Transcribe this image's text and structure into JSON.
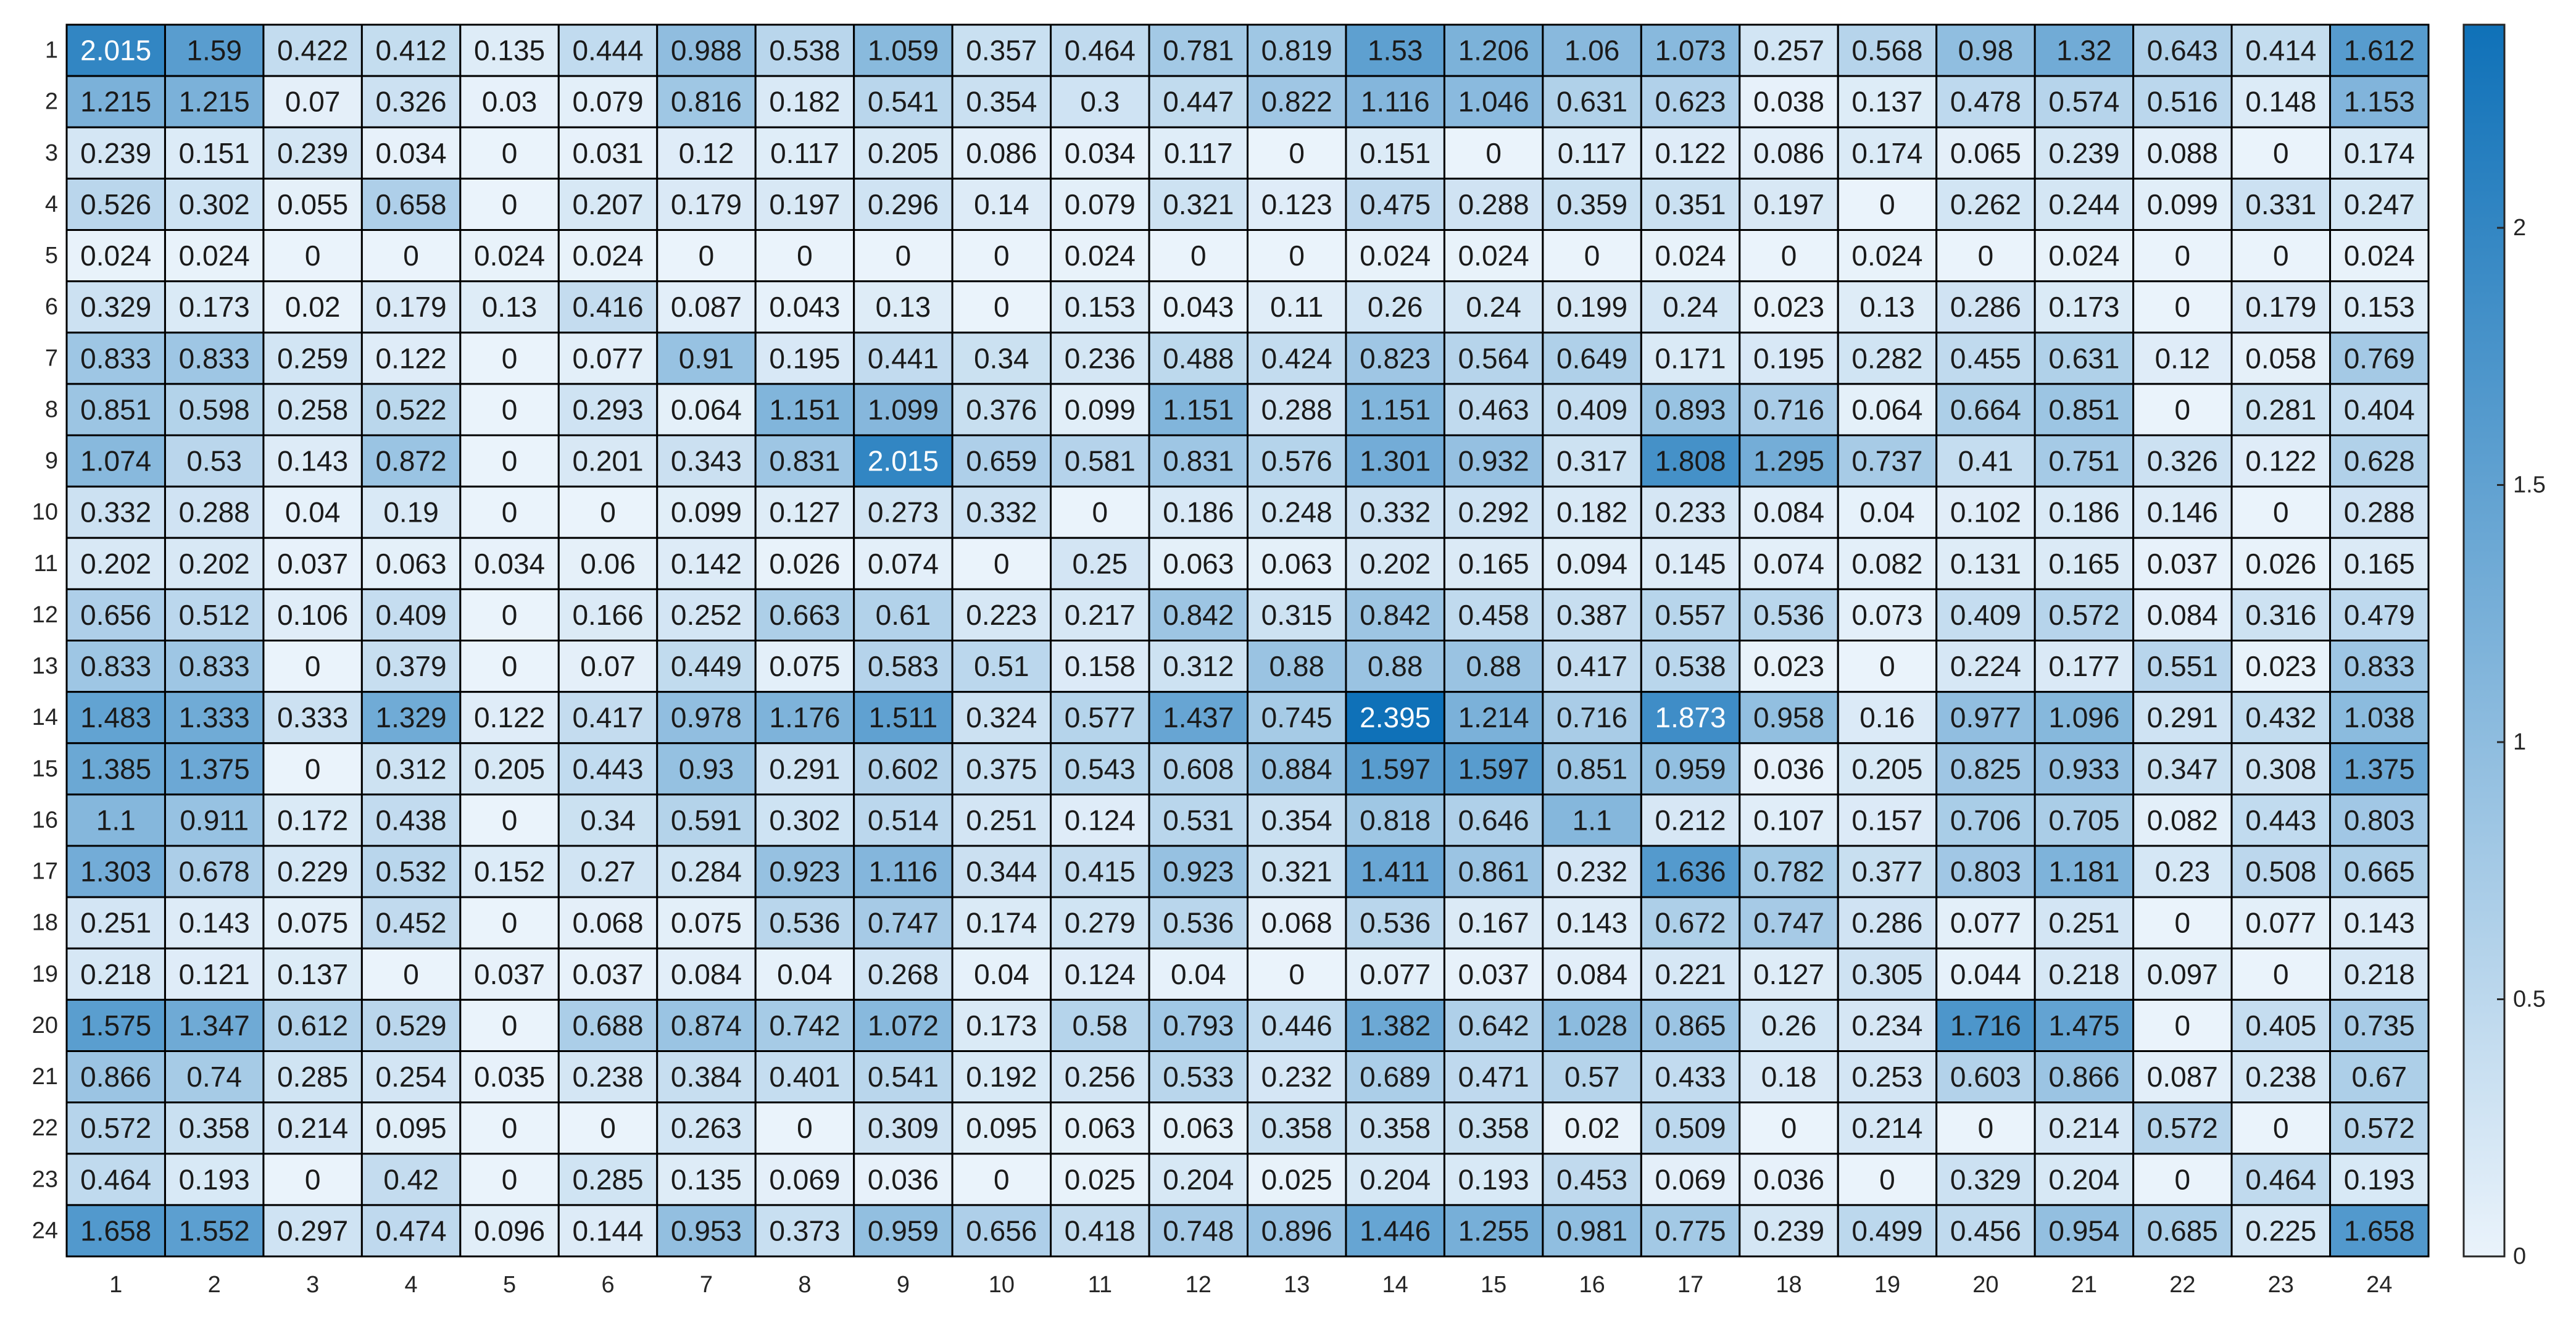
{
  "chart_data": {
    "type": "heatmap",
    "title": "",
    "xlabel": "",
    "ylabel": "",
    "x_categories": [
      "1",
      "2",
      "3",
      "4",
      "5",
      "6",
      "7",
      "8",
      "9",
      "10",
      "11",
      "12",
      "13",
      "14",
      "15",
      "16",
      "17",
      "18",
      "19",
      "20",
      "21",
      "22",
      "23",
      "24"
    ],
    "y_categories": [
      "1",
      "2",
      "3",
      "4",
      "5",
      "6",
      "7",
      "8",
      "9",
      "10",
      "11",
      "12",
      "13",
      "14",
      "15",
      "16",
      "17",
      "18",
      "19",
      "20",
      "21",
      "22",
      "23",
      "24"
    ],
    "values": [
      [
        2.015,
        1.59,
        0.422,
        0.412,
        0.135,
        0.444,
        0.988,
        0.538,
        1.059,
        0.357,
        0.464,
        0.781,
        0.819,
        1.53,
        1.206,
        1.06,
        1.073,
        0.257,
        0.568,
        0.98,
        1.32,
        0.643,
        0.414,
        1.612
      ],
      [
        1.215,
        1.215,
        0.07,
        0.326,
        0.03,
        0.079,
        0.816,
        0.182,
        0.541,
        0.354,
        0.3,
        0.447,
        0.822,
        1.116,
        1.046,
        0.631,
        0.623,
        0.038,
        0.137,
        0.478,
        0.574,
        0.516,
        0.148,
        1.153
      ],
      [
        0.239,
        0.151,
        0.239,
        0.034,
        0,
        0.031,
        0.12,
        0.117,
        0.205,
        0.086,
        0.034,
        0.117,
        0,
        0.151,
        0,
        0.117,
        0.122,
        0.086,
        0.174,
        0.065,
        0.239,
        0.088,
        0,
        0.174
      ],
      [
        0.526,
        0.302,
        0.055,
        0.658,
        0,
        0.207,
        0.179,
        0.197,
        0.296,
        0.14,
        0.079,
        0.321,
        0.123,
        0.475,
        0.288,
        0.359,
        0.351,
        0.197,
        0,
        0.262,
        0.244,
        0.099,
        0.331,
        0.247
      ],
      [
        0.024,
        0.024,
        0,
        0,
        0.024,
        0.024,
        0,
        0,
        0,
        0,
        0.024,
        0,
        0,
        0.024,
        0.024,
        0,
        0.024,
        0,
        0.024,
        0,
        0.024,
        0,
        0,
        0.024
      ],
      [
        0.329,
        0.173,
        0.02,
        0.179,
        0.13,
        0.416,
        0.087,
        0.043,
        0.13,
        0,
        0.153,
        0.043,
        0.11,
        0.26,
        0.24,
        0.199,
        0.24,
        0.023,
        0.13,
        0.286,
        0.173,
        0,
        0.179,
        0.153
      ],
      [
        0.833,
        0.833,
        0.259,
        0.122,
        0,
        0.077,
        0.91,
        0.195,
        0.441,
        0.34,
        0.236,
        0.488,
        0.424,
        0.823,
        0.564,
        0.649,
        0.171,
        0.195,
        0.282,
        0.455,
        0.631,
        0.12,
        0.058,
        0.769
      ],
      [
        0.851,
        0.598,
        0.258,
        0.522,
        0,
        0.293,
        0.064,
        1.151,
        1.099,
        0.376,
        0.099,
        1.151,
        0.288,
        1.151,
        0.463,
        0.409,
        0.893,
        0.716,
        0.064,
        0.664,
        0.851,
        0,
        0.281,
        0.404
      ],
      [
        1.074,
        0.53,
        0.143,
        0.872,
        0,
        0.201,
        0.343,
        0.831,
        2.015,
        0.659,
        0.581,
        0.831,
        0.576,
        1.301,
        0.932,
        0.317,
        1.808,
        1.295,
        0.737,
        0.41,
        0.751,
        0.326,
        0.122,
        0.628
      ],
      [
        0.332,
        0.288,
        0.04,
        0.19,
        0,
        0,
        0.099,
        0.127,
        0.273,
        0.332,
        0,
        0.186,
        0.248,
        0.332,
        0.292,
        0.182,
        0.233,
        0.084,
        0.04,
        0.102,
        0.186,
        0.146,
        0,
        0.288
      ],
      [
        0.202,
        0.202,
        0.037,
        0.063,
        0.034,
        0.06,
        0.142,
        0.026,
        0.074,
        0,
        0.25,
        0.063,
        0.063,
        0.202,
        0.165,
        0.094,
        0.145,
        0.074,
        0.082,
        0.131,
        0.165,
        0.037,
        0.026,
        0.165
      ],
      [
        0.656,
        0.512,
        0.106,
        0.409,
        0,
        0.166,
        0.252,
        0.663,
        0.61,
        0.223,
        0.217,
        0.842,
        0.315,
        0.842,
        0.458,
        0.387,
        0.557,
        0.536,
        0.073,
        0.409,
        0.572,
        0.084,
        0.316,
        0.479
      ],
      [
        0.833,
        0.833,
        0,
        0.379,
        0,
        0.07,
        0.449,
        0.075,
        0.583,
        0.51,
        0.158,
        0.312,
        0.88,
        0.88,
        0.88,
        0.417,
        0.538,
        0.023,
        0,
        0.224,
        0.177,
        0.551,
        0.023,
        0.833
      ],
      [
        1.483,
        1.333,
        0.333,
        1.329,
        0.122,
        0.417,
        0.978,
        1.176,
        1.511,
        0.324,
        0.577,
        1.437,
        0.745,
        2.395,
        1.214,
        0.716,
        1.873,
        0.958,
        0.16,
        0.977,
        1.096,
        0.291,
        0.432,
        1.038
      ],
      [
        1.385,
        1.375,
        0,
        0.312,
        0.205,
        0.443,
        0.93,
        0.291,
        0.602,
        0.375,
        0.543,
        0.608,
        0.884,
        1.597,
        1.597,
        0.851,
        0.959,
        0.036,
        0.205,
        0.825,
        0.933,
        0.347,
        0.308,
        1.375
      ],
      [
        1.1,
        0.911,
        0.172,
        0.438,
        0,
        0.34,
        0.591,
        0.302,
        0.514,
        0.251,
        0.124,
        0.531,
        0.354,
        0.818,
        0.646,
        1.1,
        0.212,
        0.107,
        0.157,
        0.706,
        0.705,
        0.082,
        0.443,
        0.803
      ],
      [
        1.303,
        0.678,
        0.229,
        0.532,
        0.152,
        0.27,
        0.284,
        0.923,
        1.116,
        0.344,
        0.415,
        0.923,
        0.321,
        1.411,
        0.861,
        0.232,
        1.636,
        0.782,
        0.377,
        0.803,
        1.181,
        0.23,
        0.508,
        0.665
      ],
      [
        0.251,
        0.143,
        0.075,
        0.452,
        0,
        0.068,
        0.075,
        0.536,
        0.747,
        0.174,
        0.279,
        0.536,
        0.068,
        0.536,
        0.167,
        0.143,
        0.672,
        0.747,
        0.286,
        0.077,
        0.251,
        0,
        0.077,
        0.143
      ],
      [
        0.218,
        0.121,
        0.137,
        0,
        0.037,
        0.037,
        0.084,
        0.04,
        0.268,
        0.04,
        0.124,
        0.04,
        0,
        0.077,
        0.037,
        0.084,
        0.221,
        0.127,
        0.305,
        0.044,
        0.218,
        0.097,
        0,
        0.218
      ],
      [
        1.575,
        1.347,
        0.612,
        0.529,
        0,
        0.688,
        0.874,
        0.742,
        1.072,
        0.173,
        0.58,
        0.793,
        0.446,
        1.382,
        0.642,
        1.028,
        0.865,
        0.26,
        0.234,
        1.716,
        1.475,
        0,
        0.405,
        0.735
      ],
      [
        0.866,
        0.74,
        0.285,
        0.254,
        0.035,
        0.238,
        0.384,
        0.401,
        0.541,
        0.192,
        0.256,
        0.533,
        0.232,
        0.689,
        0.471,
        0.57,
        0.433,
        0.18,
        0.253,
        0.603,
        0.866,
        0.087,
        0.238,
        0.67
      ],
      [
        0.572,
        0.358,
        0.214,
        0.095,
        0,
        0,
        0.263,
        0,
        0.309,
        0.095,
        0.063,
        0.063,
        0.358,
        0.358,
        0.358,
        0.02,
        0.509,
        0,
        0.214,
        0,
        0.214,
        0.572,
        0,
        0.572
      ],
      [
        0.464,
        0.193,
        0,
        0.42,
        0,
        0.285,
        0.135,
        0.069,
        0.036,
        0,
        0.025,
        0.204,
        0.025,
        0.204,
        0.193,
        0.453,
        0.069,
        0.036,
        0,
        0.329,
        0.204,
        0,
        0.464,
        0.193
      ],
      [
        1.658,
        1.552,
        0.297,
        0.474,
        0.096,
        0.144,
        0.953,
        0.373,
        0.959,
        0.656,
        0.418,
        0.748,
        0.896,
        1.446,
        1.255,
        0.981,
        0.775,
        0.239,
        0.499,
        0.456,
        0.954,
        0.685,
        0.225,
        1.658
      ]
    ],
    "colorbar": {
      "range": [
        0,
        2.395
      ],
      "ticks": [
        0,
        0.5,
        1,
        1.5,
        2
      ],
      "tick_labels": [
        "0",
        "0.5",
        "1",
        "1.5",
        "2"
      ],
      "color_low": "#eaf3fb",
      "color_high": "#0f71b8"
    },
    "grid": true,
    "legend": "colorbar-right"
  }
}
